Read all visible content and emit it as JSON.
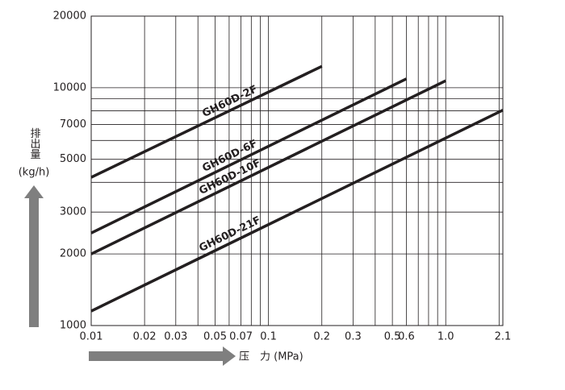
{
  "chart_data": {
    "type": "line",
    "log_x": true,
    "log_y": true,
    "grid": true,
    "xlabel": "压　力 (MPa)",
    "ylabel": "排出量",
    "yunit": "(kg/h)",
    "xlim": [
      0.01,
      2.1
    ],
    "ylim": [
      1000,
      20000
    ],
    "xticks": [
      0.01,
      0.02,
      0.03,
      0.05,
      0.07,
      0.1,
      0.2,
      0.3,
      0.5,
      0.6,
      {
        "value": 1,
        "label": "1.0"
      },
      2.1
    ],
    "x_minor_grid": [
      0.04,
      0.06,
      0.08,
      0.09,
      0.4,
      0.7,
      0.8,
      0.9,
      2
    ],
    "yticks": [
      1000,
      2000,
      3000,
      5000,
      7000,
      10000,
      20000
    ],
    "y_minor_grid": [
      4000,
      6000,
      8000,
      9000
    ],
    "series": [
      {
        "name": "GH60D-2F",
        "color": "#231f20",
        "x": [
          0.01,
          0.2
        ],
        "values": [
          4200,
          12300
        ]
      },
      {
        "name": "GH60D-6F",
        "color": "#231f20",
        "x": [
          0.01,
          0.6
        ],
        "values": [
          2450,
          10900
        ]
      },
      {
        "name": "GH60D-10F",
        "color": "#231f20",
        "x": [
          0.01,
          1
        ],
        "values": [
          2000,
          10700
        ]
      },
      {
        "name": "GH60D-21F",
        "color": "#231f20",
        "x": [
          0.01,
          2.1
        ],
        "values": [
          1150,
          8050
        ]
      }
    ]
  }
}
